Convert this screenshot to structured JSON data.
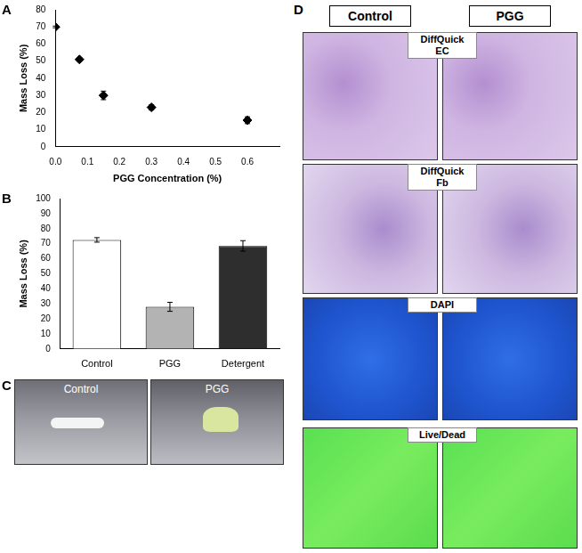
{
  "chart_data": [
    {
      "type": "scatter",
      "panel": "A",
      "x": [
        0,
        0.075,
        0.15,
        0.3,
        0.6
      ],
      "values": [
        70,
        51,
        30,
        23,
        15.5
      ],
      "errors": [
        0.5,
        1,
        2.5,
        1.5,
        2
      ],
      "x_label": "PGG Concentration (%)",
      "y_label": "Mass Loss (%)",
      "xlim": [
        0,
        0.7
      ],
      "xticks": [
        {
          "value": 0,
          "label": "0.0"
        },
        0.1,
        0.2,
        0.3,
        0.4,
        0.5,
        0.6
      ],
      "ylim": [
        0,
        80
      ],
      "yticks": [
        0,
        10,
        20,
        30,
        40,
        50,
        60,
        70,
        80
      ],
      "color": "#000000",
      "marker": "diamond",
      "grid": false
    },
    {
      "type": "bar",
      "panel": "B",
      "categories": [
        "Control",
        "PGG",
        "Detergent"
      ],
      "values": [
        72.5,
        28,
        68.5
      ],
      "errors": [
        1.5,
        3,
        3.5
      ],
      "colors": [
        "#ffffff",
        "#b3b3b3",
        "#2e2e2e"
      ],
      "y_label": "Mass Loss (%)",
      "ylim": [
        0,
        100
      ],
      "yticks": [
        0,
        10,
        20,
        30,
        40,
        50,
        60,
        70,
        80,
        90,
        100
      ],
      "grid": false
    }
  ],
  "images": {
    "panel_C": {
      "panel": "C",
      "labels": [
        "Control",
        "PGG"
      ]
    },
    "panel_D": {
      "panel": "D",
      "columns": [
        "Control",
        "PGG"
      ],
      "rows": [
        [
          "DiffQuick",
          "EC"
        ],
        [
          "DiffQuick",
          "Fb"
        ],
        [
          "DAPI"
        ],
        [
          "Live/Dead"
        ]
      ]
    }
  }
}
